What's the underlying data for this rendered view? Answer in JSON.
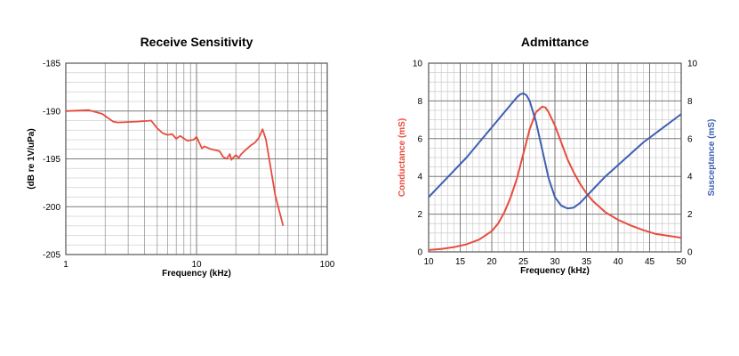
{
  "chart_data": [
    {
      "type": "line",
      "title": "Receive Sensitivity",
      "xlabel": "Frequency (kHz)",
      "ylabel": "(dB re 1V/uPa)",
      "xscale": "log",
      "xlim": [
        1,
        100
      ],
      "ylim": [
        -205,
        -185
      ],
      "xticks": [
        1,
        10,
        100
      ],
      "xtick_labels": [
        "1",
        "10",
        "100"
      ],
      "yticks": [
        -205,
        -200,
        -195,
        -190,
        -185
      ],
      "ytick_labels": [
        "-205",
        "-200",
        "-195",
        "-190",
        "-185"
      ],
      "grid": true,
      "colors": {
        "line": "#e84c3d",
        "grid": "#9a9a9a",
        "minor_grid": "#d0d0d0"
      },
      "series": [
        {
          "color": "#e84c3d",
          "x": [
            1,
            1.5,
            1.9,
            2.3,
            2.5,
            3.5,
            4.5,
            5,
            5.5,
            6,
            6.5,
            7,
            7.5,
            8.5,
            9.5,
            10,
            11,
            11.5,
            12,
            13,
            14,
            15,
            16,
            17,
            18,
            18.5,
            19,
            20,
            21,
            22,
            24,
            26,
            28,
            30,
            32,
            34,
            37,
            40,
            44,
            46
          ],
          "y": [
            -190,
            -189.9,
            -190.3,
            -191.1,
            -191.2,
            -191.1,
            -191.0,
            -191.8,
            -192.3,
            -192.5,
            -192.4,
            -192.9,
            -192.6,
            -193.1,
            -193.0,
            -192.7,
            -193.9,
            -193.7,
            -193.8,
            -194.0,
            -194.1,
            -194.2,
            -194.8,
            -195.0,
            -194.5,
            -195.1,
            -194.9,
            -194.6,
            -194.9,
            -194.5,
            -194.0,
            -193.6,
            -193.3,
            -192.8,
            -191.9,
            -193.0,
            -196.0,
            -198.8,
            -201.0,
            -202.0
          ]
        }
      ]
    },
    {
      "type": "line",
      "title": "Admittance",
      "xlabel": "Frequency (kHz)",
      "ylabel_left": "Conductance (mS)",
      "ylabel_right": "Susceptance (mS)",
      "xlim": [
        10,
        50
      ],
      "ylim_left": [
        0,
        10
      ],
      "ylim_right": [
        0,
        10
      ],
      "xticks": [
        10,
        15,
        20,
        25,
        30,
        35,
        40,
        45,
        50
      ],
      "xtick_labels": [
        "10",
        "15",
        "20",
        "25",
        "30",
        "35",
        "40",
        "45",
        "50"
      ],
      "yticks": [
        0,
        2,
        4,
        6,
        8,
        10
      ],
      "ytick_labels": [
        "0",
        "2",
        "4",
        "6",
        "8",
        "10"
      ],
      "grid": true,
      "colors": {
        "grid": "#9a9a9a",
        "minor_grid": "#d0d0d0"
      },
      "series": [
        {
          "name": "Conductance (mS)",
          "axis": "left",
          "color": "#e84c3d",
          "x": [
            10,
            12,
            14,
            16,
            18,
            20,
            21,
            22,
            23,
            24,
            25,
            26,
            27,
            28,
            28.5,
            29,
            30,
            31,
            32,
            33,
            34,
            35,
            36,
            38,
            40,
            42,
            44,
            46,
            48,
            50
          ],
          "y": [
            0.1,
            0.15,
            0.25,
            0.4,
            0.65,
            1.1,
            1.5,
            2.1,
            2.9,
            3.9,
            5.2,
            6.5,
            7.4,
            7.7,
            7.65,
            7.4,
            6.7,
            5.8,
            4.9,
            4.2,
            3.6,
            3.1,
            2.7,
            2.1,
            1.7,
            1.4,
            1.15,
            0.95,
            0.85,
            0.75
          ]
        },
        {
          "name": "Susceptance (mS)",
          "axis": "right",
          "color": "#3f5fb2",
          "x": [
            10,
            12,
            14,
            16,
            18,
            20,
            22,
            23,
            24,
            24.5,
            25,
            25.5,
            26,
            27,
            28,
            29,
            30,
            31,
            32,
            33,
            34,
            36,
            38,
            40,
            42,
            44,
            46,
            48,
            50
          ],
          "y": [
            2.9,
            3.6,
            4.3,
            5.0,
            5.8,
            6.6,
            7.4,
            7.8,
            8.2,
            8.35,
            8.4,
            8.3,
            8.0,
            6.9,
            5.4,
            3.9,
            2.9,
            2.45,
            2.3,
            2.35,
            2.6,
            3.3,
            4.0,
            4.6,
            5.2,
            5.8,
            6.3,
            6.8,
            7.3
          ]
        }
      ]
    }
  ]
}
